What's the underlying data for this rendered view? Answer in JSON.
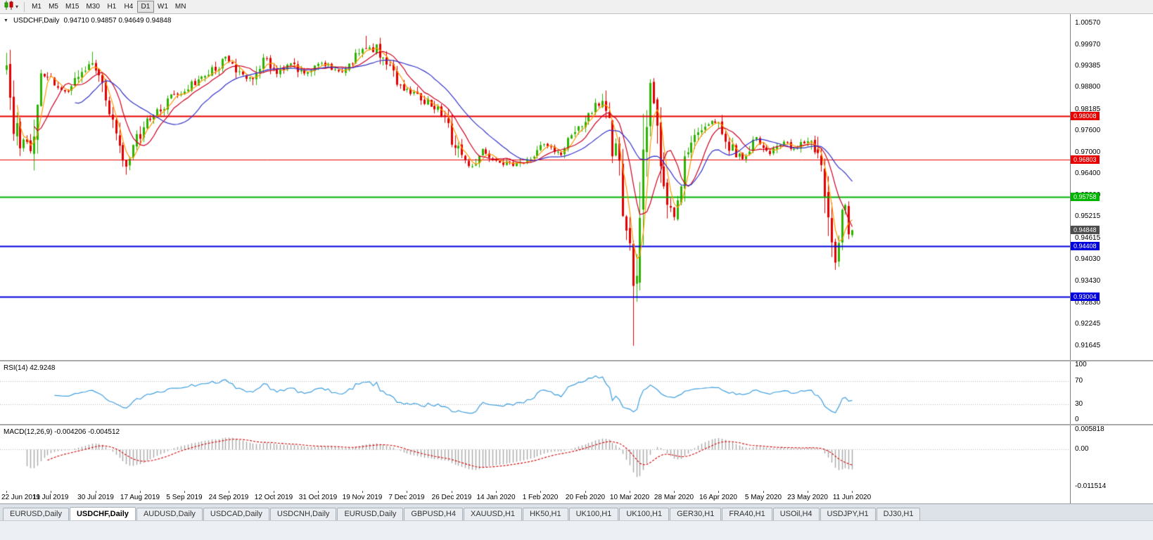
{
  "icons": {
    "chart_dropdown": {
      "name": "dropdown-icon",
      "glyph": "▾"
    },
    "symbol_collapse": {
      "name": "collapse-arrow-icon",
      "glyph": "▼"
    }
  },
  "colors": {
    "bull": "#2db300",
    "bear": "#e30000",
    "ma_fast_orange": "#ff9900",
    "ma_mid_red": "#cc0022",
    "ma_slow_blue": "#3333cc",
    "rsi_line": "#3f9fe0",
    "rsi_level_dotted": "#b8b8b8",
    "macd_hist": "#a8a8a8",
    "macd_signal": "#d40000",
    "current_price_bg": "#4d4d4d",
    "axis_border": "#808080"
  },
  "toolbar": {
    "timeframes": [
      "M1",
      "M5",
      "M15",
      "M30",
      "H1",
      "H4",
      "D1",
      "W1",
      "MN"
    ],
    "active_timeframe": "D1"
  },
  "chart": {
    "symbol_label": "USDCHF,Daily",
    "ohlc_string": "0.94710 0.94857 0.94649 0.94848",
    "price_axis_labels": [
      "1.00570",
      "0.99970",
      "0.99385",
      "0.98800",
      "0.98185",
      "0.97600",
      "0.97000",
      "0.96400",
      "0.95800",
      "0.95215",
      "0.94615",
      "0.94030",
      "0.93430",
      "0.92830",
      "0.92245",
      "0.91645"
    ],
    "current_price_badge": {
      "label": "0.94848",
      "price": 0.94848
    }
  },
  "rsi": {
    "label": "RSI(14) 42.9248",
    "value": 42.9248,
    "axis_labels": [
      "100",
      "70",
      "30",
      "0"
    ]
  },
  "macd": {
    "label": "MACD(12,26,9) -0.004206 -0.004512",
    "axis_labels": [
      "0.005818",
      "0.00",
      "-0.011514"
    ]
  },
  "tabs": {
    "items": [
      "EURUSD,Daily",
      "USDCHF,Daily",
      "AUDUSD,Daily",
      "USDCAD,Daily",
      "USDCNH,Daily",
      "EURUSD,Daily",
      "GBPUSD,H4",
      "XAUUSD,H1",
      "HK50,H1",
      "UK100,H1",
      "UK100,H1",
      "GER30,H1",
      "FRA40,H1",
      "USOil,H4",
      "USDJPY,H1",
      "DJ30,H1"
    ],
    "active_index": 1
  },
  "chart_data": {
    "type": "candlestick",
    "symbol": "USDCHF",
    "timeframe": "Daily",
    "ohlc_current": {
      "open": 0.9471,
      "high": 0.94857,
      "low": 0.94649,
      "close": 0.94848
    },
    "ylim": [
      0.91256,
      1.00823
    ],
    "candles_count": 248,
    "candles_per_date_label": 13,
    "seed": 11,
    "x_labels": [
      "22 Jun 2019",
      "11 Jul 2019",
      "30 Jul 2019",
      "17 Aug 2019",
      "5 Sep 2019",
      "24 Sep 2019",
      "12 Oct 2019",
      "31 Oct 2019",
      "19 Nov 2019",
      "7 Dec 2019",
      "26 Dec 2019",
      "14 Jan 2020",
      "1 Feb 2020",
      "20 Feb 2020",
      "10 Mar 2020",
      "28 Mar 2020",
      "16 Apr 2020",
      "5 May 2020",
      "23 May 2020",
      "11 Jun 2020"
    ],
    "price_anchors": [
      [
        0,
        0.993
      ],
      [
        2,
        0.979
      ],
      [
        4,
        0.973
      ],
      [
        7,
        0.9722
      ],
      [
        10,
        0.9918
      ],
      [
        13,
        0.99
      ],
      [
        16,
        0.9872
      ],
      [
        19,
        0.988
      ],
      [
        22,
        0.9915
      ],
      [
        25,
        0.9948
      ],
      [
        27,
        0.9905
      ],
      [
        29,
        0.9872
      ],
      [
        31,
        0.979
      ],
      [
        33,
        0.969
      ],
      [
        35,
        0.966
      ],
      [
        37,
        0.9712
      ],
      [
        41,
        0.978
      ],
      [
        45,
        0.9822
      ],
      [
        48,
        0.985
      ],
      [
        54,
        0.9888
      ],
      [
        58,
        0.9905
      ],
      [
        62,
        0.994
      ],
      [
        64,
        0.9958
      ],
      [
        66,
        0.9935
      ],
      [
        68,
        0.992
      ],
      [
        70,
        0.9895
      ],
      [
        72,
        0.9902
      ],
      [
        75,
        0.9962
      ],
      [
        77,
        0.9945
      ],
      [
        79,
        0.992
      ],
      [
        82,
        0.9945
      ],
      [
        85,
        0.993
      ],
      [
        87,
        0.9912
      ],
      [
        90,
        0.993
      ],
      [
        92,
        0.995
      ],
      [
        95,
        0.9935
      ],
      [
        97,
        0.9925
      ],
      [
        100,
        0.9945
      ],
      [
        102,
        0.9962
      ],
      [
        105,
        0.9995
      ],
      [
        108,
        0.9985
      ],
      [
        110,
        0.9955
      ],
      [
        112,
        0.9925
      ],
      [
        115,
        0.9882
      ],
      [
        118,
        0.987
      ],
      [
        120,
        0.9855
      ],
      [
        122,
        0.9845
      ],
      [
        124,
        0.983
      ],
      [
        126,
        0.9815
      ],
      [
        128,
        0.979
      ],
      [
        130,
        0.9745
      ],
      [
        132,
        0.97
      ],
      [
        135,
        0.9658
      ],
      [
        137,
        0.9672
      ],
      [
        139,
        0.97
      ],
      [
        141,
        0.9692
      ],
      [
        143,
        0.968
      ],
      [
        145,
        0.9672
      ],
      [
        148,
        0.9665
      ],
      [
        151,
        0.9678
      ],
      [
        153,
        0.969
      ],
      [
        155,
        0.9705
      ],
      [
        157,
        0.9718
      ],
      [
        159,
        0.971
      ],
      [
        162,
        0.97
      ],
      [
        164,
        0.9728
      ],
      [
        166,
        0.9758
      ],
      [
        168,
        0.9782
      ],
      [
        170,
        0.9808
      ],
      [
        172,
        0.9828
      ],
      [
        174,
        0.9838
      ],
      [
        176,
        0.9772
      ],
      [
        178,
        0.968
      ],
      [
        180,
        0.958
      ],
      [
        181,
        0.9505
      ],
      [
        182,
        0.942
      ],
      [
        183,
        0.933
      ],
      [
        184,
        0.9405
      ],
      [
        185,
        0.9548
      ],
      [
        186,
        0.965
      ],
      [
        187,
        0.9748
      ],
      [
        188,
        0.988
      ],
      [
        189,
        0.985
      ],
      [
        190,
        0.98
      ],
      [
        191,
        0.9705
      ],
      [
        192,
        0.964
      ],
      [
        193,
        0.9568
      ],
      [
        195,
        0.9532
      ],
      [
        197,
        0.961
      ],
      [
        198,
        0.9675
      ],
      [
        200,
        0.972
      ],
      [
        202,
        0.9758
      ],
      [
        204,
        0.9775
      ],
      [
        207,
        0.979
      ],
      [
        209,
        0.976
      ],
      [
        211,
        0.9722
      ],
      [
        213,
        0.97
      ],
      [
        215,
        0.9682
      ],
      [
        217,
        0.9715
      ],
      [
        219,
        0.9742
      ],
      [
        221,
        0.9718
      ],
      [
        223,
        0.9698
      ],
      [
        226,
        0.9726
      ],
      [
        228,
        0.972
      ],
      [
        230,
        0.971
      ],
      [
        232,
        0.9724
      ],
      [
        234,
        0.9738
      ],
      [
        236,
        0.9705
      ],
      [
        238,
        0.964
      ],
      [
        240,
        0.954
      ],
      [
        241,
        0.9448
      ],
      [
        242,
        0.939
      ],
      [
        243,
        0.9448
      ],
      [
        244,
        0.953
      ],
      [
        245,
        0.955
      ],
      [
        246,
        0.947
      ],
      [
        247,
        0.94848
      ]
    ],
    "wick_overrides": {
      "25": {
        "high": 0.9978
      },
      "35": {
        "low": 0.9638
      },
      "105": {
        "high": 1.0022
      },
      "174": {
        "high": 0.9862
      },
      "183": {
        "low": 0.9165
      },
      "188": {
        "high": 0.9902
      },
      "242": {
        "low": 0.9375
      }
    },
    "moving_averages": [
      {
        "period": 4,
        "color_key": "ma_fast_orange"
      },
      {
        "period": 9,
        "color_key": "ma_mid_red"
      },
      {
        "period": 21,
        "color_key": "ma_slow_blue"
      }
    ],
    "hlines": [
      {
        "price": 0.98008,
        "label": "0.98008",
        "color": "#e60000",
        "width": 2
      },
      {
        "price": 0.96803,
        "label": "0.96803",
        "color": "#e60000",
        "width": 1
      },
      {
        "price": 0.95758,
        "label": "0.95758",
        "color": "#00b400",
        "width": 2
      },
      {
        "price": 0.94408,
        "label": "0.94408",
        "color": "#0000dd",
        "width": 2
      },
      {
        "price": 0.93004,
        "label": "0.93004",
        "color": "#0000dd",
        "width": 2
      }
    ],
    "rsi": {
      "period": 14,
      "current": 42.9248,
      "levels": [
        70,
        30
      ]
    },
    "macd": {
      "fast": 12,
      "slow": 26,
      "signal": 9,
      "current": -0.004206,
      "signal_current": -0.004512,
      "scale_max": 0.005818,
      "scale_min": -0.011514
    }
  }
}
